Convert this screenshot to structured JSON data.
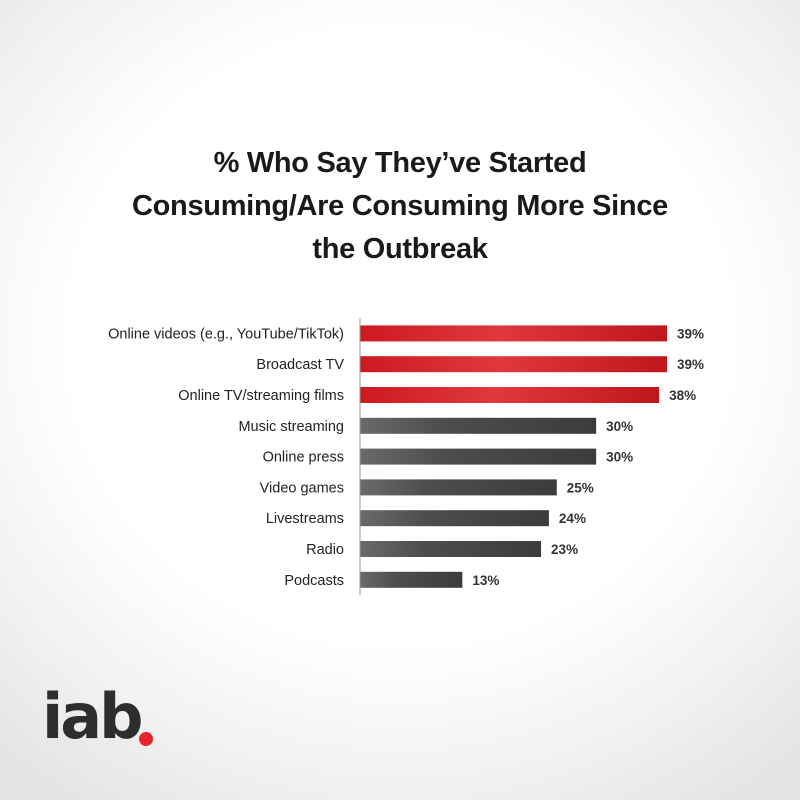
{
  "title_lines": [
    "% Who Say They’ve Started",
    "Consuming/Are Consuming More Since",
    "the Outbreak"
  ],
  "logo_text": "iab",
  "colors": {
    "highlight": "#cc1a1f",
    "default": "#4a4a4a",
    "accent_dot": "#e3262b"
  },
  "chart_data": {
    "type": "bar",
    "orientation": "horizontal",
    "title": "% Who Say They’ve Started Consuming/Are Consuming More Since the Outbreak",
    "categories": [
      "Online videos (e.g., YouTube/TikTok)",
      "Broadcast TV",
      "Online TV/streaming films",
      "Music streaming",
      "Online press",
      "Video games",
      "Livestreams",
      "Radio",
      "Podcasts"
    ],
    "values": [
      39,
      39,
      38,
      30,
      30,
      25,
      24,
      23,
      13
    ],
    "value_labels": [
      "39%",
      "39%",
      "38%",
      "30%",
      "30%",
      "25%",
      "24%",
      "23%",
      "13%"
    ],
    "highlighted": [
      true,
      true,
      true,
      false,
      false,
      false,
      false,
      false,
      false
    ],
    "xlim": [
      0,
      39
    ],
    "grid": false,
    "legend": "none"
  }
}
